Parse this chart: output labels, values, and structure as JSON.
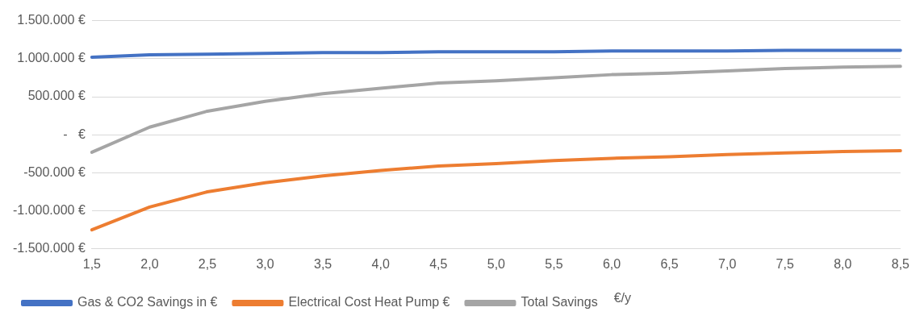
{
  "chart_data": {
    "type": "line",
    "categories": [
      "1,5",
      "2,0",
      "2,5",
      "3,0",
      "3,5",
      "4,0",
      "4,5",
      "5,0",
      "5,5",
      "6,0",
      "6,5",
      "7,0",
      "7,5",
      "8,0",
      "8,5"
    ],
    "series": [
      {
        "name": "Gas & CO2 Savings in €",
        "color": "#4472c4",
        "values": [
          1020000,
          1050000,
          1060000,
          1070000,
          1080000,
          1080000,
          1090000,
          1090000,
          1090000,
          1100000,
          1100000,
          1100000,
          1110000,
          1110000,
          1110000
        ]
      },
      {
        "name": "Electrical Cost Heat Pump €",
        "color": "#ed7d31",
        "values": [
          -1250000,
          -950000,
          -750000,
          -630000,
          -540000,
          -470000,
          -410000,
          -380000,
          -340000,
          -310000,
          -290000,
          -260000,
          -240000,
          -220000,
          -210000
        ]
      },
      {
        "name": "Total Savings",
        "color": "#a5a5a5",
        "values": [
          -230000,
          100000,
          310000,
          440000,
          540000,
          610000,
          680000,
          710000,
          750000,
          790000,
          810000,
          840000,
          870000,
          890000,
          900000
        ]
      }
    ],
    "ylim": [
      -1500000,
      1500000
    ],
    "yticks": [
      {
        "value": -1500000,
        "label": "-1.500.000 €"
      },
      {
        "value": -1000000,
        "label": "-1.000.000 €"
      },
      {
        "value": -500000,
        "label": "-500.000 €"
      },
      {
        "value": 0,
        "label": "-   €"
      },
      {
        "value": 500000,
        "label": "500.000 €"
      },
      {
        "value": 1000000,
        "label": "1.000.000 €"
      },
      {
        "value": 1500000,
        "label": "1.500.000 €"
      }
    ],
    "grid": "y",
    "legend": "bottom",
    "marker": "none",
    "line_style": "solid",
    "annotations": [
      "€/y"
    ]
  }
}
